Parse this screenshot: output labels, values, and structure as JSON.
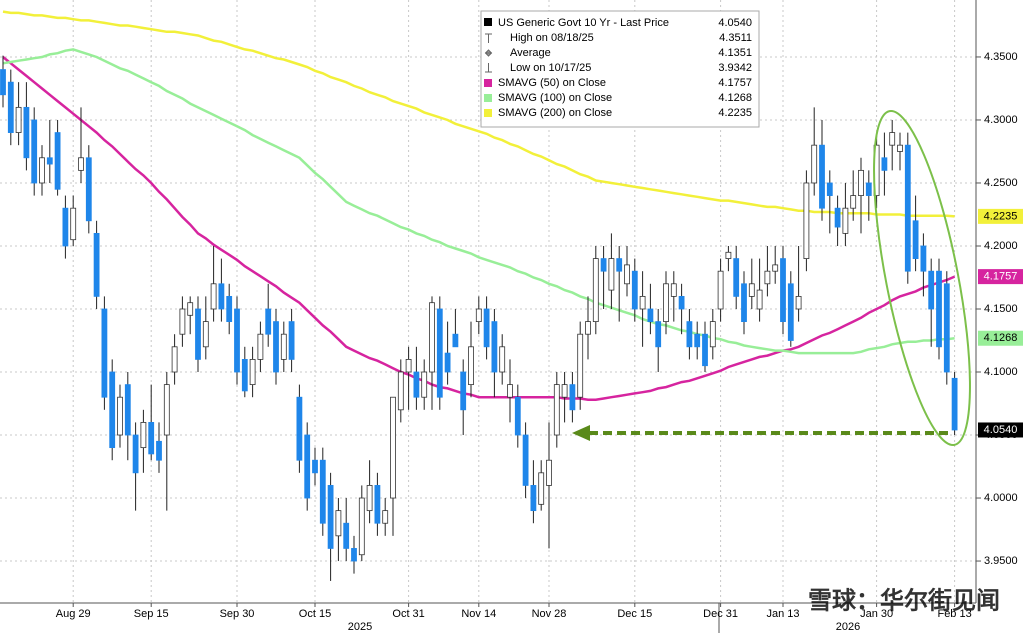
{
  "chart_data": {
    "type": "candlestick",
    "categories": [
      null,
      null,
      null,
      null,
      null,
      null,
      null,
      null,
      null,
      "Aug 29",
      null,
      null,
      null,
      null,
      null,
      null,
      null,
      null,
      null,
      "Sep 15",
      null,
      null,
      null,
      null,
      null,
      null,
      null,
      null,
      null,
      null,
      "Sep 30",
      null,
      null,
      null,
      null,
      null,
      null,
      null,
      null,
      null,
      "Oct 15",
      null,
      null,
      null,
      null,
      null,
      null,
      null,
      null,
      null,
      null,
      null,
      "Oct 31",
      null,
      null,
      null,
      null,
      null,
      null,
      null,
      null,
      "Nov 14",
      null,
      null,
      null,
      null,
      null,
      null,
      null,
      null,
      "Nov 28",
      null,
      null,
      null,
      null,
      null,
      null,
      null,
      null,
      null,
      null,
      "Dec 15",
      null,
      null,
      null,
      null,
      null,
      null,
      null,
      null,
      null,
      null,
      "Dec 31",
      null,
      null,
      null,
      null,
      null,
      null,
      null,
      "Jan 13",
      null,
      null,
      null,
      null,
      null,
      null,
      null,
      null,
      null,
      null,
      null,
      "Jan 30",
      null,
      null,
      null,
      null,
      null,
      null,
      null,
      null,
      null,
      "Feb 13"
    ],
    "x_years": [
      "2025",
      "2026"
    ],
    "ylim": [
      3.9167,
      4.3952
    ],
    "yticks": [
      {
        "value": 3.95,
        "label": "3.9500"
      },
      {
        "value": 4.0,
        "label": "4.0000"
      },
      {
        "value": 4.05,
        "label": "4.0500"
      },
      {
        "value": 4.1,
        "label": "4.1000"
      },
      {
        "value": 4.15,
        "label": "4.1500"
      },
      {
        "value": 4.2,
        "label": "4.2000"
      },
      {
        "value": 4.25,
        "label": "4.2500"
      },
      {
        "value": 4.3,
        "label": "4.3000"
      },
      {
        "value": 4.35,
        "label": "4.3500"
      }
    ],
    "grid": true,
    "legend": "top-center",
    "stats": [
      {
        "label": "High on 08/18/25",
        "value": "4.3511"
      },
      {
        "label": "Average",
        "value": "4.1351"
      },
      {
        "label": "Low on 10/17/25",
        "value": "3.9342"
      }
    ],
    "watermark": "雪球：华尔街见闻",
    "series": [
      {
        "name": "US Generic Govt 10 Yr - Last Price",
        "type": "candlestick",
        "up_color": "#ffffff",
        "down_color": "#1f86ea",
        "tag_color": "#000000",
        "last_label": "4.0540",
        "open": [
          4.34,
          4.33,
          4.29,
          4.31,
          4.3,
          4.25,
          4.27,
          4.29,
          4.23,
          4.205,
          4.26,
          4.27,
          4.21,
          4.15,
          4.1,
          4.05,
          4.09,
          4.05,
          4.04,
          4.06,
          4.045,
          4.05,
          4.1,
          4.13,
          4.145,
          4.15,
          4.12,
          4.15,
          4.17,
          4.16,
          4.15,
          4.11,
          4.09,
          4.11,
          4.15,
          4.14,
          4.11,
          4.14,
          4.08,
          4.05,
          4.03,
          4.03,
          4.01,
          3.97,
          3.98,
          3.96,
          3.955,
          3.99,
          4.01,
          3.98,
          4.0,
          4.07,
          4.1,
          4.1,
          4.08,
          4.1,
          4.15,
          4.115,
          4.13,
          4.1,
          4.09,
          4.14,
          4.15,
          4.14,
          4.1,
          4.08,
          4.08,
          4.05,
          4.01,
          3.995,
          4.01,
          4.05,
          4.08,
          4.09,
          4.08,
          4.13,
          4.14,
          4.19,
          4.165,
          4.19,
          4.17,
          4.18,
          4.15,
          4.15,
          4.14,
          4.14,
          4.16,
          4.16,
          4.14,
          4.13,
          4.13,
          4.12,
          4.15,
          4.19,
          4.19,
          4.17,
          4.16,
          4.15,
          4.17,
          4.18,
          4.19,
          4.17,
          4.15,
          4.19,
          4.25,
          4.28,
          4.25,
          4.23,
          4.21,
          4.23,
          4.24,
          4.25,
          4.24,
          4.27,
          4.28,
          4.275,
          4.28,
          4.22,
          4.2,
          4.18,
          4.18,
          4.17,
          4.095
        ],
        "high": [
          4.3511,
          4.34,
          4.33,
          4.33,
          4.31,
          4.28,
          4.3,
          4.3,
          4.24,
          4.24,
          4.31,
          4.28,
          4.22,
          4.16,
          4.11,
          4.09,
          4.1,
          4.06,
          4.07,
          4.09,
          4.06,
          4.1,
          4.13,
          4.16,
          4.16,
          4.16,
          4.16,
          4.2,
          4.19,
          4.17,
          4.16,
          4.12,
          4.12,
          4.14,
          4.17,
          4.15,
          4.14,
          4.15,
          4.09,
          4.06,
          4.04,
          4.04,
          4.02,
          4.0,
          4.0,
          3.97,
          4.01,
          4.03,
          4.02,
          4.0,
          4.08,
          4.11,
          4.12,
          4.12,
          4.11,
          4.16,
          4.16,
          4.14,
          4.15,
          4.11,
          4.14,
          4.16,
          4.16,
          4.15,
          4.13,
          4.11,
          4.09,
          4.06,
          4.03,
          4.03,
          4.06,
          4.1,
          4.1,
          4.1,
          4.14,
          4.16,
          4.2,
          4.2,
          4.21,
          4.2,
          4.2,
          4.19,
          4.18,
          4.17,
          4.15,
          4.18,
          4.18,
          4.17,
          4.15,
          4.14,
          4.14,
          4.15,
          4.19,
          4.2,
          4.2,
          4.18,
          4.19,
          4.19,
          4.2,
          4.2,
          4.2,
          4.18,
          4.2,
          4.26,
          4.31,
          4.3,
          4.26,
          4.24,
          4.25,
          4.26,
          4.27,
          4.26,
          4.29,
          4.29,
          4.3,
          4.29,
          4.29,
          4.24,
          4.21,
          4.19,
          4.19,
          4.18,
          4.1
        ],
        "low": [
          4.31,
          4.28,
          4.28,
          4.26,
          4.24,
          4.24,
          4.25,
          4.24,
          4.19,
          4.2,
          4.25,
          4.21,
          4.15,
          4.07,
          4.03,
          4.04,
          4.03,
          3.99,
          4.02,
          4.03,
          4.02,
          3.99,
          4.09,
          4.12,
          4.13,
          4.1,
          4.11,
          4.14,
          4.14,
          4.13,
          4.09,
          4.08,
          4.08,
          4.1,
          4.12,
          4.09,
          4.1,
          4.1,
          4.02,
          3.99,
          4.01,
          3.97,
          3.9342,
          3.95,
          3.95,
          3.94,
          3.95,
          3.98,
          3.97,
          3.97,
          3.97,
          4.06,
          4.07,
          4.07,
          4.07,
          4.07,
          4.07,
          4.09,
          4.12,
          4.05,
          4.08,
          4.13,
          4.11,
          4.08,
          4.09,
          4.06,
          4.04,
          4.0,
          3.98,
          3.99,
          3.96,
          4.04,
          4.06,
          4.06,
          4.07,
          4.11,
          4.13,
          4.15,
          4.15,
          4.14,
          4.16,
          4.14,
          4.12,
          4.13,
          4.1,
          4.13,
          4.14,
          4.13,
          4.11,
          4.11,
          4.1,
          4.11,
          4.14,
          4.18,
          4.15,
          4.13,
          4.15,
          4.14,
          4.16,
          4.17,
          4.13,
          4.12,
          4.14,
          4.18,
          4.24,
          4.22,
          4.21,
          4.2,
          4.2,
          4.22,
          4.21,
          4.22,
          4.23,
          4.24,
          4.26,
          4.26,
          4.17,
          4.18,
          4.16,
          4.12,
          4.11,
          4.09,
          4.05
        ],
        "close": [
          4.32,
          4.29,
          4.31,
          4.27,
          4.25,
          4.27,
          4.265,
          4.245,
          4.2,
          4.23,
          4.27,
          4.22,
          4.16,
          4.08,
          4.04,
          4.08,
          4.05,
          4.02,
          4.06,
          4.035,
          4.03,
          4.09,
          4.12,
          4.15,
          4.155,
          4.11,
          4.14,
          4.17,
          4.15,
          4.14,
          4.1,
          4.085,
          4.11,
          4.13,
          4.13,
          4.1,
          4.13,
          4.11,
          4.03,
          4.0,
          4.02,
          3.98,
          3.96,
          3.99,
          3.96,
          3.95,
          4.0,
          4.01,
          3.98,
          3.99,
          4.08,
          4.1,
          4.11,
          4.08,
          4.1,
          4.155,
          4.08,
          4.1,
          4.12,
          4.07,
          4.12,
          4.15,
          4.12,
          4.1,
          4.12,
          4.09,
          4.05,
          4.01,
          3.99,
          4.02,
          4.03,
          4.09,
          4.09,
          4.07,
          4.13,
          4.14,
          4.19,
          4.18,
          4.19,
          4.18,
          4.185,
          4.15,
          4.16,
          4.14,
          4.12,
          4.17,
          4.17,
          4.15,
          4.12,
          4.12,
          4.105,
          4.14,
          4.18,
          4.195,
          4.16,
          4.14,
          4.17,
          4.165,
          4.18,
          4.185,
          4.14,
          4.125,
          4.16,
          4.25,
          4.28,
          4.23,
          4.24,
          4.215,
          4.23,
          4.24,
          4.26,
          4.24,
          4.28,
          4.26,
          4.29,
          4.28,
          4.18,
          4.19,
          4.18,
          4.15,
          4.12,
          4.1,
          4.054
        ]
      },
      {
        "name": "SMAVG (50)  on Close",
        "type": "line",
        "color": "#d6249f",
        "text_color": "#ffffff",
        "last_label": "4.1757",
        "values": [
          4.35,
          4.345,
          4.34,
          4.335,
          4.33,
          4.325,
          4.32,
          4.315,
          4.31,
          4.305,
          4.3,
          4.295,
          4.29,
          4.284,
          4.279,
          4.273,
          4.267,
          4.261,
          4.256,
          4.25,
          4.243,
          4.237,
          4.23,
          4.223,
          4.217,
          4.21,
          4.206,
          4.201,
          4.197,
          4.193,
          4.189,
          4.184,
          4.18,
          4.176,
          4.172,
          4.168,
          4.163,
          4.159,
          4.155,
          4.149,
          4.143,
          4.137,
          4.132,
          4.126,
          4.12,
          4.117,
          4.114,
          4.111,
          4.109,
          4.106,
          4.103,
          4.1,
          4.098,
          4.095,
          4.093,
          4.09,
          4.088,
          4.087,
          4.085,
          4.083,
          4.082,
          4.08,
          4.08,
          4.08,
          4.08,
          4.08,
          4.08,
          4.08,
          4.08,
          4.08,
          4.08,
          4.08,
          4.079,
          4.079,
          4.079,
          4.078,
          4.078,
          4.079,
          4.08,
          4.081,
          4.082,
          4.083,
          4.084,
          4.085,
          4.087,
          4.088,
          4.09,
          4.092,
          4.093,
          4.095,
          4.097,
          4.099,
          4.101,
          4.104,
          4.106,
          4.108,
          4.11,
          4.112,
          4.113,
          4.115,
          4.117,
          4.118,
          4.12,
          4.123,
          4.126,
          4.129,
          4.131,
          4.134,
          4.137,
          4.14,
          4.143,
          4.147,
          4.15,
          4.153,
          4.157,
          4.16,
          4.162,
          4.164,
          4.167,
          4.169,
          4.171,
          4.173,
          4.1757
        ]
      },
      {
        "name": "SMAVG (100)  on Close",
        "type": "line",
        "color": "#98ee98",
        "text_color": "#000000",
        "last_label": "4.1268",
        "values": [
          4.345,
          4.346,
          4.347,
          4.348,
          4.349,
          4.35,
          4.352,
          4.353,
          4.355,
          4.356,
          4.354,
          4.352,
          4.35,
          4.347,
          4.344,
          4.341,
          4.339,
          4.336,
          4.333,
          4.33,
          4.327,
          4.323,
          4.32,
          4.317,
          4.313,
          4.31,
          4.307,
          4.304,
          4.301,
          4.298,
          4.295,
          4.292,
          4.288,
          4.285,
          4.282,
          4.279,
          4.276,
          4.273,
          4.27,
          4.264,
          4.258,
          4.253,
          4.247,
          4.241,
          4.235,
          4.232,
          4.229,
          4.226,
          4.224,
          4.221,
          4.218,
          4.215,
          4.213,
          4.21,
          4.208,
          4.205,
          4.203,
          4.2,
          4.198,
          4.196,
          4.194,
          4.191,
          4.189,
          4.187,
          4.185,
          4.183,
          4.18,
          4.178,
          4.175,
          4.173,
          4.17,
          4.168,
          4.165,
          4.163,
          4.16,
          4.158,
          4.155,
          4.153,
          4.151,
          4.149,
          4.147,
          4.145,
          4.142,
          4.14,
          4.138,
          4.137,
          4.135,
          4.133,
          4.132,
          4.13,
          4.129,
          4.127,
          4.126,
          4.124,
          4.123,
          4.121,
          4.12,
          4.119,
          4.118,
          4.117,
          4.117,
          4.116,
          4.115,
          4.115,
          4.115,
          4.115,
          4.115,
          4.115,
          4.115,
          4.115,
          4.116,
          4.118,
          4.119,
          4.12,
          4.122,
          4.123,
          4.124,
          4.124,
          4.125,
          4.125,
          4.126,
          4.126,
          4.1268
        ]
      },
      {
        "name": "SMAVG (200)  on Close",
        "type": "line",
        "color": "#f2f03a",
        "text_color": "#000000",
        "last_label": "4.2235",
        "values": [
          4.386,
          4.385,
          4.385,
          4.384,
          4.383,
          4.383,
          4.382,
          4.381,
          4.381,
          4.38,
          4.379,
          4.379,
          4.378,
          4.377,
          4.376,
          4.375,
          4.375,
          4.374,
          4.373,
          4.372,
          4.371,
          4.37,
          4.37,
          4.369,
          4.368,
          4.367,
          4.365,
          4.363,
          4.362,
          4.36,
          4.358,
          4.356,
          4.355,
          4.353,
          4.351,
          4.349,
          4.348,
          4.346,
          4.344,
          4.342,
          4.339,
          4.337,
          4.334,
          4.332,
          4.33,
          4.327,
          4.325,
          4.322,
          4.32,
          4.318,
          4.315,
          4.313,
          4.311,
          4.309,
          4.306,
          4.304,
          4.302,
          4.3,
          4.297,
          4.295,
          4.293,
          4.291,
          4.289,
          4.286,
          4.284,
          4.281,
          4.279,
          4.276,
          4.273,
          4.271,
          4.268,
          4.265,
          4.263,
          4.26,
          4.257,
          4.255,
          4.252,
          4.251,
          4.25,
          4.249,
          4.248,
          4.247,
          4.246,
          4.245,
          4.244,
          4.243,
          4.242,
          4.241,
          4.24,
          4.239,
          4.238,
          4.237,
          4.236,
          4.236,
          4.235,
          4.234,
          4.233,
          4.232,
          4.231,
          4.231,
          4.23,
          4.229,
          4.228,
          4.228,
          4.227,
          4.227,
          4.227,
          4.226,
          4.226,
          4.226,
          4.226,
          4.226,
          4.225,
          4.225,
          4.225,
          4.225,
          4.224,
          4.224,
          4.224,
          4.224,
          4.224,
          4.224,
          4.2235
        ]
      }
    ]
  }
}
